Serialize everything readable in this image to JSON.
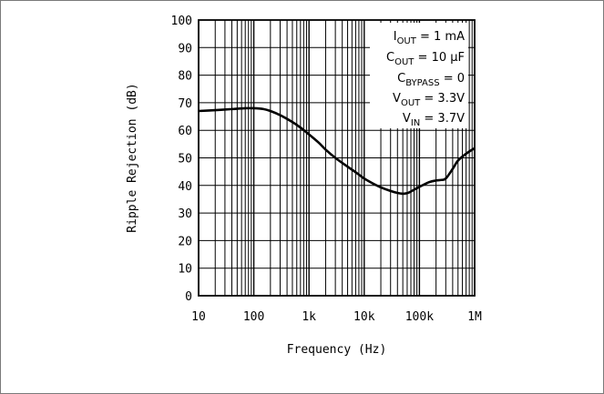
{
  "chart_data": {
    "type": "line",
    "title": "",
    "xlabel": "Frequency (Hz)",
    "ylabel": "Ripple Rejection (dB)",
    "xscale": "log",
    "xlim": [
      10,
      1000000
    ],
    "ylim": [
      0,
      100
    ],
    "grid": true,
    "x_tick_labels": [
      "10",
      "100",
      "1k",
      "10k",
      "100k",
      "1M"
    ],
    "x_tick_values": [
      10,
      100,
      1000,
      10000,
      100000,
      1000000
    ],
    "y_tick_values": [
      0,
      10,
      20,
      30,
      40,
      50,
      60,
      70,
      80,
      90,
      100
    ],
    "annotations": [
      {
        "main": "I",
        "sub": "OUT",
        "rest": " = 1 mA"
      },
      {
        "main": "C",
        "sub": "OUT",
        "rest": " = 10 μF"
      },
      {
        "main": "C",
        "sub": "BYPASS",
        "rest": " = 0"
      },
      {
        "main": "V",
        "sub": "OUT",
        "rest": " = 3.3V"
      },
      {
        "main": "V",
        "sub": "IN",
        "rest": " = 3.7V"
      }
    ],
    "series": [
      {
        "color": "#000000",
        "x": [
          10,
          20,
          40,
          70,
          100,
          150,
          200,
          300,
          500,
          700,
          1000,
          1500,
          2000,
          3000,
          5000,
          7000,
          10000,
          15000,
          20000,
          30000,
          40000,
          50000,
          60000,
          70000,
          100000,
          150000,
          200000,
          250000,
          300000,
          400000,
          500000,
          700000,
          1000000
        ],
        "y": [
          67,
          67.3,
          67.7,
          68,
          68,
          67.7,
          67,
          65.5,
          63,
          61,
          58.5,
          55.5,
          53,
          50,
          46.8,
          44.8,
          42.5,
          40.5,
          39.3,
          38,
          37.3,
          37,
          37.2,
          37.8,
          39.5,
          41.2,
          41.8,
          42,
          42.5,
          46,
          49,
          51.5,
          53.5
        ]
      }
    ]
  }
}
